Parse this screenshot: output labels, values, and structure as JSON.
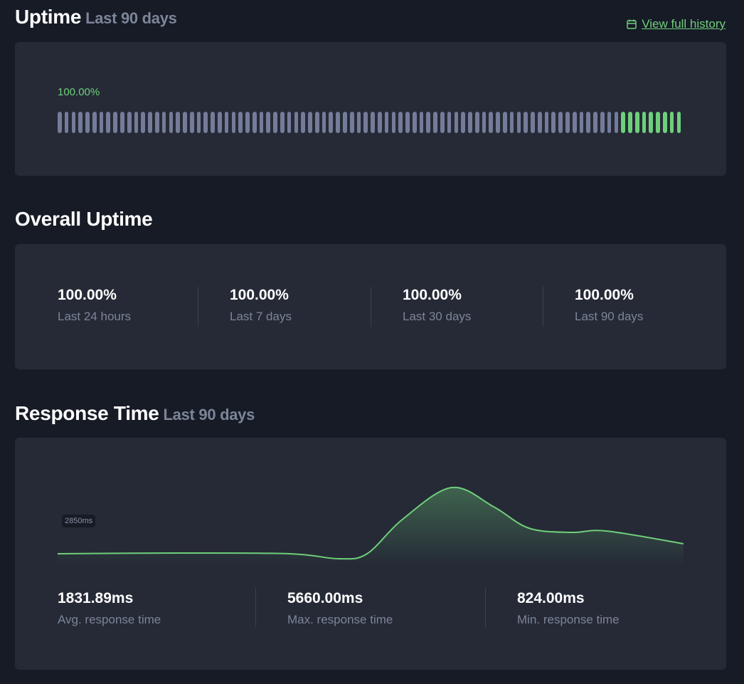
{
  "uptime": {
    "title": "Uptime",
    "subtitle": "Last 90 days",
    "link": "View full history",
    "percent": "100.00%",
    "days_total": 90,
    "days_green": 9,
    "colors": {
      "up": "#6fcf7a",
      "nodata": "#747c99"
    }
  },
  "overall": {
    "title": "Overall Uptime",
    "stats": [
      {
        "value": "100.00%",
        "label": "Last 24 hours"
      },
      {
        "value": "100.00%",
        "label": "Last 7 days"
      },
      {
        "value": "100.00%",
        "label": "Last 30 days"
      },
      {
        "value": "100.00%",
        "label": "Last 90 days"
      }
    ]
  },
  "response": {
    "title": "Response Time",
    "subtitle": "Last 90 days",
    "tag": "2850ms",
    "stats": [
      {
        "value": "1831.89ms",
        "label": "Avg. response time"
      },
      {
        "value": "5660.00ms",
        "label": "Max. response time"
      },
      {
        "value": "824.00ms",
        "label": "Min. response time"
      }
    ]
  },
  "chart_data": {
    "type": "area",
    "x": [
      0,
      17,
      33,
      40,
      44,
      49,
      56,
      62,
      67,
      73,
      78,
      89
    ],
    "values": [
      1163,
      1210,
      1163,
      824,
      1163,
      3484,
      5660,
      4354,
      2904,
      2613,
      2710,
      1840
    ],
    "ylim": [
      824,
      5660
    ],
    "color": "#6fcf7a"
  }
}
